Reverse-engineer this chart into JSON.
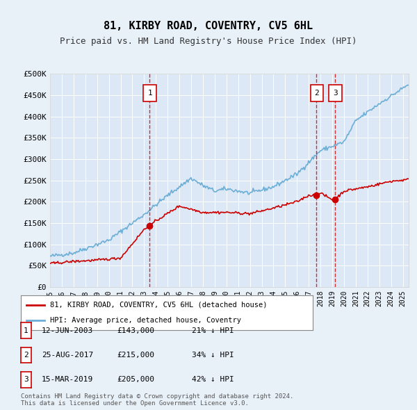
{
  "title": "81, KIRBY ROAD, COVENTRY, CV5 6HL",
  "subtitle": "Price paid vs. HM Land Registry's House Price Index (HPI)",
  "background_color": "#e8f0f8",
  "plot_bg_color": "#dce8f5",
  "transactions": [
    {
      "num": 1,
      "date": "12-JUN-2003",
      "price": 143000,
      "pct": "21%",
      "year_x": 2003.44
    },
    {
      "num": 2,
      "date": "25-AUG-2017",
      "price": 215000,
      "pct": "34%",
      "year_x": 2017.64
    },
    {
      "num": 3,
      "date": "15-MAR-2019",
      "price": 205000,
      "pct": "42%",
      "year_x": 2019.21
    }
  ],
  "ylim": [
    0,
    500000
  ],
  "xlim": [
    1995,
    2025.5
  ],
  "yticks": [
    0,
    50000,
    100000,
    150000,
    200000,
    250000,
    300000,
    350000,
    400000,
    450000,
    500000
  ],
  "ytick_labels": [
    "£0",
    "£50K",
    "£100K",
    "£150K",
    "£200K",
    "£250K",
    "£300K",
    "£350K",
    "£400K",
    "£450K",
    "£500K"
  ],
  "xticks": [
    1995,
    1996,
    1997,
    1998,
    1999,
    2000,
    2001,
    2002,
    2003,
    2004,
    2005,
    2006,
    2007,
    2008,
    2009,
    2010,
    2011,
    2012,
    2013,
    2014,
    2015,
    2016,
    2017,
    2018,
    2019,
    2020,
    2021,
    2022,
    2023,
    2024,
    2025
  ],
  "hpi_color": "#6baed6",
  "price_color": "#cc0000",
  "legend_label_price": "81, KIRBY ROAD, COVENTRY, CV5 6HL (detached house)",
  "legend_label_hpi": "HPI: Average price, detached house, Coventry",
  "footer": "Contains HM Land Registry data © Crown copyright and database right 2024.\nThis data is licensed under the Open Government Licence v3.0.",
  "marker_box_color": "#cc0000"
}
